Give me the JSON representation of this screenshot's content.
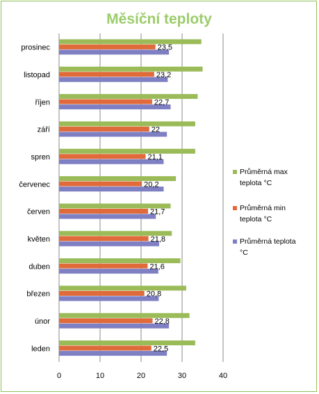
{
  "chart_data": {
    "type": "bar",
    "orientation": "horizontal",
    "title": "Měsíční teploty",
    "categories": [
      "leden",
      "únor",
      "březen",
      "duben",
      "květen",
      "červen",
      "červenec",
      "spren",
      "září",
      "říjen",
      "listopad",
      "prosinec"
    ],
    "series": [
      {
        "name": "Průměrná max teplota °C",
        "color": "#9bbb59",
        "values": [
          33.2,
          31.8,
          31.0,
          29.6,
          27.5,
          27.2,
          28.5,
          33.2,
          33.2,
          33.8,
          35.0,
          34.7
        ]
      },
      {
        "name": "Průměrná min teplota °C",
        "color": "#e06a3a",
        "values": [
          22.5,
          22.8,
          20.8,
          21.6,
          21.8,
          21.7,
          20.2,
          21.1,
          22,
          22.7,
          23.2,
          23.5
        ]
      },
      {
        "name": "Průměrná teplota °C",
        "color": "#7f7fc4",
        "values": [
          26.3,
          26.8,
          24.3,
          24.2,
          24.4,
          23.6,
          25.5,
          25.5,
          26.3,
          27.2,
          26.5,
          26.8
        ]
      }
    ],
    "data_labels": [
      "22,5",
      "22,8",
      "20,8",
      "21,6",
      "21,8",
      "21,7",
      "20,2",
      "21,1",
      "22",
      "22,7",
      "23,2",
      "23,5"
    ],
    "data_label_series": "Průměrná min teplota °C",
    "xlim": [
      0,
      40
    ],
    "x_ticks": [
      "0",
      "10",
      "20",
      "30",
      "40"
    ],
    "grid": true,
    "legend_position": "right"
  }
}
